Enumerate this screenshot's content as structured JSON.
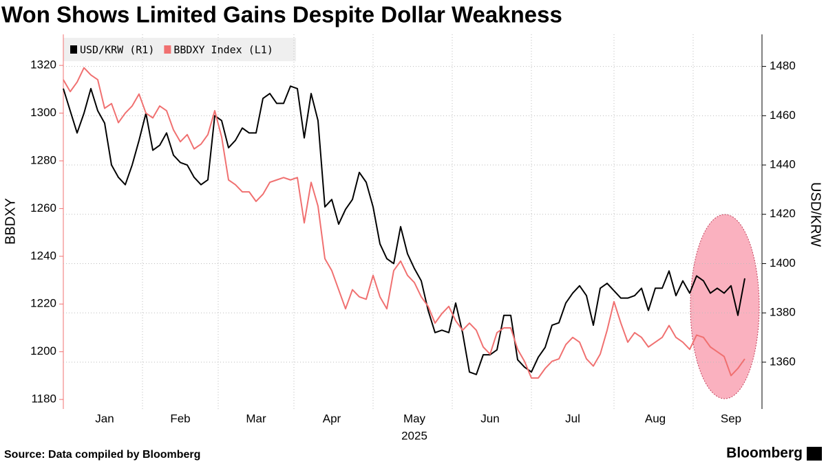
{
  "chart_data": {
    "type": "line",
    "title": "Won Shows Limited Gains Despite Dollar Weakness",
    "source": "Source: Data compiled by Bloomberg",
    "brand": "Bloomberg",
    "xlabel": "2025",
    "ylabel": "BBDXY",
    "y2label": "USD/KRW",
    "categories": [
      null,
      null,
      null,
      null,
      null,
      null,
      "Jan",
      null,
      null,
      null,
      null,
      null,
      null,
      null,
      null,
      null,
      null,
      "Feb",
      null,
      null,
      null,
      null,
      null,
      null,
      null,
      null,
      null,
      null,
      "Mar",
      null,
      null,
      null,
      null,
      null,
      null,
      null,
      null,
      null,
      null,
      "Apr",
      null,
      null,
      null,
      null,
      null,
      null,
      null,
      null,
      null,
      null,
      null,
      "May",
      null,
      null,
      null,
      null,
      null,
      null,
      null,
      null,
      null,
      null,
      "Jun",
      null,
      null,
      null,
      null,
      null,
      null,
      null,
      null,
      null,
      null,
      null,
      "Jul",
      null,
      null,
      null,
      null,
      null,
      null,
      null,
      null,
      null,
      null,
      null,
      "Aug",
      null,
      null,
      null,
      null,
      null,
      null,
      null,
      null,
      null,
      null,
      "Sep",
      null,
      null
    ],
    "series": [
      {
        "name": "USD/KRW (R1)",
        "color": "#000000",
        "axis": "y2",
        "values": [
          1471,
          1462,
          1453,
          1461,
          1471,
          1462,
          1457,
          1440,
          1435,
          1432,
          1440,
          1450,
          1461,
          1446,
          1448,
          1453,
          1444,
          1441,
          1440,
          1435,
          1432,
          1434,
          1460,
          1458,
          1447,
          1450,
          1455,
          1453,
          1453,
          1467,
          1469,
          1465,
          1465,
          1472,
          1471,
          1451,
          1469,
          1458,
          1423,
          1426,
          1416,
          1422,
          1426,
          1437,
          1433,
          1423,
          1408,
          1402,
          1400,
          1415,
          1404,
          1398,
          1393,
          1381,
          1372,
          1373,
          1372,
          1384,
          1372,
          1356,
          1355,
          1363,
          1363,
          1365,
          1379,
          1379,
          1361,
          1358,
          1356,
          1362,
          1366,
          1375,
          1376,
          1384,
          1388,
          1391,
          1387,
          1375,
          1390,
          1392,
          1389,
          1386,
          1386,
          1387,
          1390,
          1381,
          1390,
          1390,
          1397,
          1387,
          1393,
          1388,
          1395,
          1393,
          1388,
          1390,
          1388,
          1391,
          1379,
          1394
        ]
      },
      {
        "name": "BBDXY Index (L1)",
        "color": "#f07070",
        "axis": "y",
        "values": [
          1314,
          1309,
          1313,
          1319,
          1316,
          1314,
          1302,
          1304,
          1296,
          1300,
          1303,
          1308,
          1300,
          1298,
          1303,
          1301,
          1293,
          1288,
          1291,
          1285,
          1287,
          1291,
          1301,
          1290,
          1272,
          1270,
          1267,
          1267,
          1263,
          1266,
          1271,
          1272,
          1273,
          1272,
          1273,
          1254,
          1271,
          1261,
          1239,
          1234,
          1226,
          1218,
          1226,
          1223,
          1222,
          1232,
          1223,
          1218,
          1234,
          1238,
          1232,
          1229,
          1223,
          1219,
          1212,
          1216,
          1219,
          1213,
          1209,
          1212,
          1209,
          1202,
          1199,
          1208,
          1210,
          1210,
          1201,
          1196,
          1189,
          1189,
          1193,
          1196,
          1197,
          1203,
          1206,
          1204,
          1197,
          1194,
          1199,
          1209,
          1221,
          1212,
          1204,
          1208,
          1206,
          1202,
          1204,
          1206,
          1211,
          1206,
          1204,
          1201,
          1207,
          1206,
          1202,
          1200,
          1198,
          1190,
          1193,
          1197
        ]
      }
    ],
    "ylim": [
      1176,
      1333
    ],
    "yticks": [
      1180,
      1200,
      1220,
      1240,
      1260,
      1280,
      1300,
      1320
    ],
    "y2lim": [
      1341,
      1493
    ],
    "y2ticks": [
      1360,
      1380,
      1400,
      1420,
      1440,
      1460,
      1480
    ],
    "grid": true
  }
}
